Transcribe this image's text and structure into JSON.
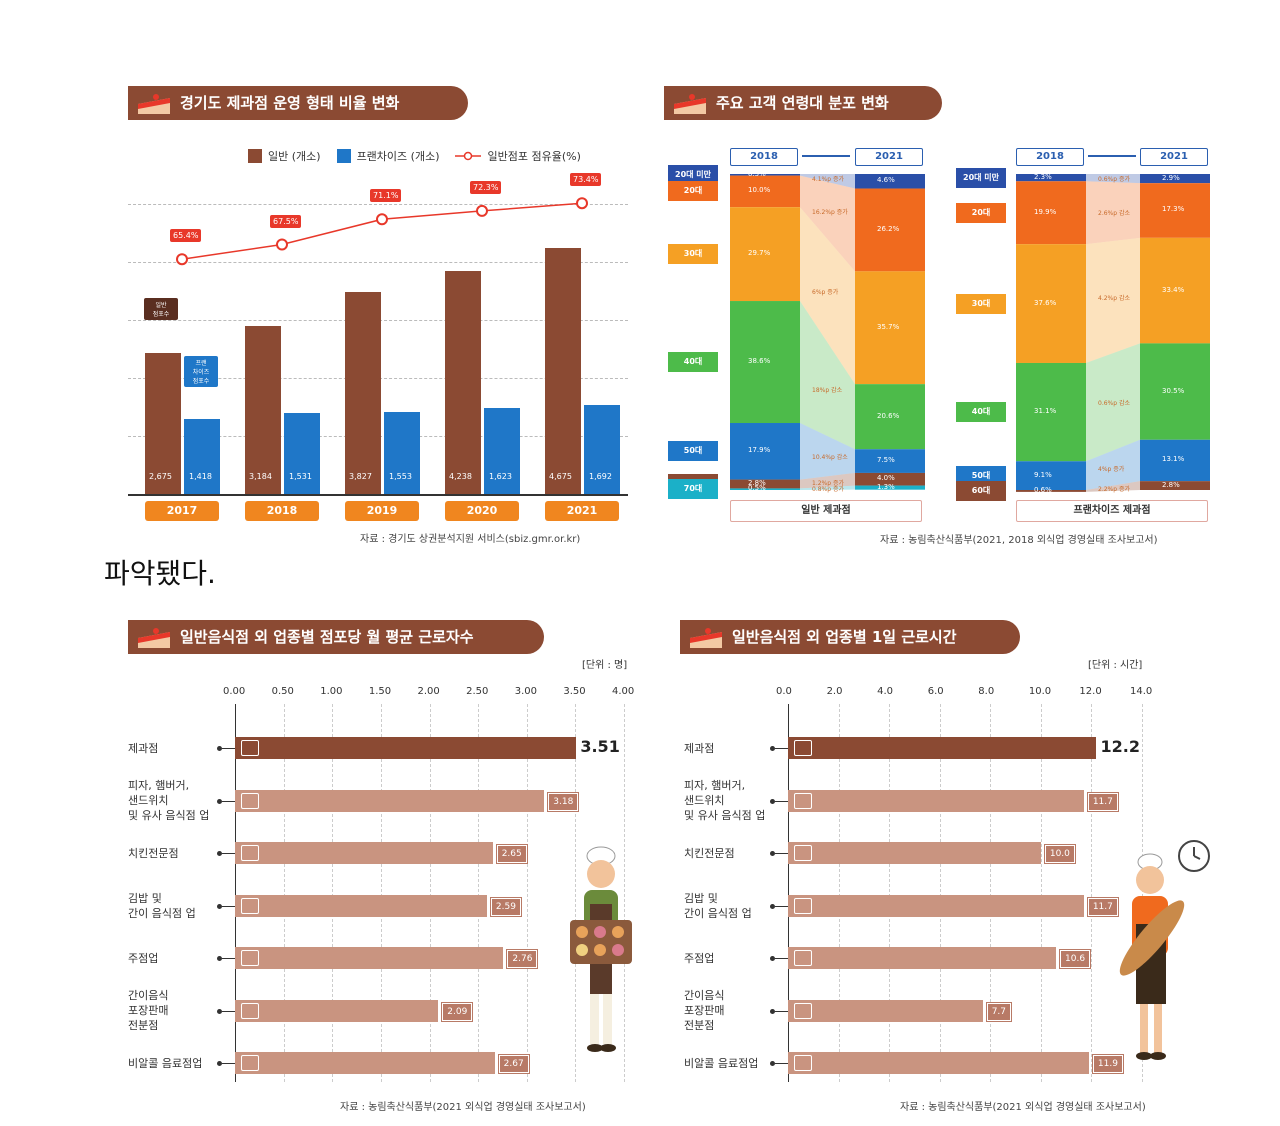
{
  "colors": {
    "brown": "#8b4a33",
    "blue": "#1f77c8",
    "orange": "#f0861f",
    "red": "#e8382a",
    "lightbrown": "#c99480"
  },
  "chart1": {
    "title": "경기도 제과점 운영 형태 비율 변화",
    "legend": [
      "일반 (개소)",
      "프랜차이즈 (개소)",
      "일반점포 점유율(%)"
    ],
    "callout_general": "일반\n점포수",
    "callout_franchise": "프랜\n차이즈\n점포수",
    "source": "자료 : 경기도 상권분석지원 서비스(sbiz.gmr.or.kr)"
  },
  "chart2": {
    "title": "주요 고객 연령대 분포 변화",
    "year_from": "2018",
    "year_to": "2021",
    "caption_left": "일반 제과점",
    "caption_right": "프랜차이즈 제과점",
    "source": "자료 : 농림축산식품부(2021, 2018 외식업 경영실태 조사보고서)"
  },
  "mid_text": "파악됐다.",
  "chart3": {
    "title": "일반음식점 외 업종별 점포당 월 평균 근로자수",
    "unit": "[단위 : 명]",
    "source": "자료 : 농림축산식품부(2021 외식업 경영실태 조사보고서)"
  },
  "chart4": {
    "title": "일반음식점 외 업종별 1일 근로시간",
    "unit": "[단위 : 시간]",
    "source": "자료 : 농림축산식품부(2021 외식업 경영실태 조사보고서)"
  },
  "chart_data": [
    {
      "type": "bar",
      "title": "경기도 제과점 운영 형태 비율 변화",
      "categories": [
        "2017",
        "2018",
        "2019",
        "2020",
        "2021"
      ],
      "series": [
        {
          "name": "일반 (개소)",
          "values": [
            2675,
            3184,
            3827,
            4238,
            4675
          ],
          "labels": [
            "2,675",
            "3,184",
            "3,827",
            "4,238",
            "4,675"
          ]
        },
        {
          "name": "프랜차이즈 (개소)",
          "values": [
            1418,
            1531,
            1553,
            1623,
            1692
          ],
          "labels": [
            "1,418",
            "1,531",
            "1,553",
            "1,623",
            "1,692"
          ]
        },
        {
          "name": "일반점포 점유율(%)",
          "type": "line",
          "values": [
            65.4,
            67.5,
            71.1,
            72.3,
            73.4
          ],
          "labels": [
            "65.4%",
            "67.5%",
            "71.1%",
            "72.3%",
            "73.4%"
          ]
        }
      ]
    },
    {
      "type": "bar",
      "title": "주요 고객 연령대 분포 변화 - 일반 제과점",
      "categories": [
        "2018",
        "2021"
      ],
      "series": [
        {
          "name": "20대 미만",
          "values": [
            0.5,
            4.6
          ],
          "labels": [
            "0.5%",
            "4.6%"
          ],
          "change": "4.1%p 증가",
          "color": "#2a4fa8"
        },
        {
          "name": "20대",
          "values": [
            10.0,
            26.2
          ],
          "labels": [
            "10.0%",
            "26.2%"
          ],
          "change": "16.2%p 증가",
          "color": "#f06a1e"
        },
        {
          "name": "30대",
          "values": [
            29.7,
            35.7
          ],
          "labels": [
            "29.7%",
            "35.7%"
          ],
          "change": "6%p 증가",
          "color": "#f5a024"
        },
        {
          "name": "40대",
          "values": [
            38.6,
            20.6
          ],
          "labels": [
            "38.6%",
            "20.6%"
          ],
          "change": "18%p 감소",
          "color": "#4dbb4a"
        },
        {
          "name": "50대",
          "values": [
            17.9,
            7.5
          ],
          "labels": [
            "17.9%",
            "7.5%"
          ],
          "change": "10.4%p 감소",
          "color": "#1f77c8"
        },
        {
          "name": "60대",
          "values": [
            2.8,
            4.0
          ],
          "labels": [
            "2.8%",
            "4.0%"
          ],
          "change": "1.2%p 증가",
          "color": "#8b4a33"
        },
        {
          "name": "70대",
          "values": [
            0.5,
            1.3
          ],
          "labels": [
            "0.5%",
            "1.3%"
          ],
          "change": "0.8%p 증가",
          "color": "#1bb0c8"
        }
      ]
    },
    {
      "type": "bar",
      "title": "주요 고객 연령대 분포 변화 - 프랜차이즈 제과점",
      "categories": [
        "2018",
        "2021"
      ],
      "series": [
        {
          "name": "20대 미만",
          "values": [
            2.3,
            2.9
          ],
          "labels": [
            "2.3%",
            "2.9%"
          ],
          "change": "0.6%p 증가",
          "color": "#2a4fa8"
        },
        {
          "name": "20대",
          "values": [
            19.9,
            17.3
          ],
          "labels": [
            "19.9%",
            "17.3%"
          ],
          "change": "2.6%p 감소",
          "color": "#f06a1e"
        },
        {
          "name": "30대",
          "values": [
            37.6,
            33.4
          ],
          "labels": [
            "37.6%",
            "33.4%"
          ],
          "change": "4.2%p 감소",
          "color": "#f5a024"
        },
        {
          "name": "40대",
          "values": [
            31.1,
            30.5
          ],
          "labels": [
            "31.1%",
            "30.5%"
          ],
          "change": "0.6%p 감소",
          "color": "#4dbb4a"
        },
        {
          "name": "50대",
          "values": [
            9.1,
            13.1
          ],
          "labels": [
            "9.1%",
            "13.1%"
          ],
          "change": "4%p 증가",
          "color": "#1f77c8"
        },
        {
          "name": "60대",
          "values": [
            0.6,
            2.8
          ],
          "labels": [
            "0.6%",
            "2.8%"
          ],
          "change": "2.2%p 증가",
          "color": "#8b4a33"
        }
      ]
    },
    {
      "type": "bar",
      "title": "일반음식점 외 업종별 점포당 월 평균 근로자수",
      "categories": [
        "제과점",
        "피자, 햄버거,\n샌드위치\n및 유사 음식점 업",
        "치킨전문점",
        "김밥 및\n간이 음식점 업",
        "주점업",
        "간이음식\n포장판매\n전분점",
        "비알콜 음료점업"
      ],
      "values": [
        3.51,
        3.18,
        2.65,
        2.59,
        2.76,
        2.09,
        2.67
      ],
      "labels": [
        "3.51",
        "3.18",
        "2.65",
        "2.59",
        "2.76",
        "2.09",
        "2.67"
      ],
      "ticks": [
        "0.00",
        "0.50",
        "1.00",
        "1.50",
        "2.00",
        "2.50",
        "3.00",
        "3.50",
        "4.00"
      ],
      "xlim": [
        0,
        4
      ]
    },
    {
      "type": "bar",
      "title": "일반음식점 외 업종별 1일 근로시간",
      "categories": [
        "제과점",
        "피자, 햄버거,\n샌드위치\n및 유사 음식점 업",
        "치킨전문점",
        "김밥 및\n간이 음식점 업",
        "주점업",
        "간이음식\n포장판매\n전분점",
        "비알콜 음료점업"
      ],
      "values": [
        12.2,
        11.7,
        10.0,
        11.7,
        10.6,
        7.7,
        11.9
      ],
      "labels": [
        "12.2",
        "11.7",
        "10.0",
        "11.7",
        "10.6",
        "7.7",
        "11.9"
      ],
      "ticks": [
        "0.0",
        "2.0",
        "4.0",
        "6.0",
        "8.0",
        "10.0",
        "12.0",
        "14.0"
      ],
      "xlim": [
        0,
        14
      ]
    }
  ]
}
